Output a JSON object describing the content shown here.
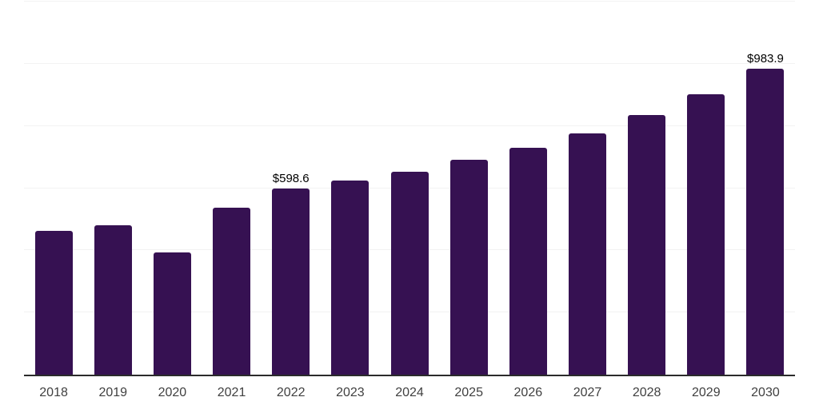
{
  "chart_data": {
    "type": "bar",
    "categories": [
      "2018",
      "2019",
      "2020",
      "2021",
      "2022",
      "2023",
      "2024",
      "2025",
      "2026",
      "2027",
      "2028",
      "2029",
      "2030"
    ],
    "values": [
      462,
      480,
      393,
      537,
      598.6,
      625,
      653,
      690,
      730,
      775,
      835,
      902,
      983.9
    ],
    "series_name": "value",
    "title": "",
    "xlabel": "",
    "ylabel": "",
    "ylim": [
      0,
      1200
    ],
    "grid_step": 200,
    "grid": true,
    "legend": false,
    "data_labels": [
      {
        "category": "2022",
        "text": "$598.6"
      },
      {
        "category": "2030",
        "text": "$983.9"
      }
    ]
  },
  "colors": {
    "bar": "#361152",
    "gridline": "#f2f2f2",
    "axis_line": "#2b2b2b",
    "tick_label": "#404040",
    "data_label": "#000000",
    "background": "#ffffff"
  }
}
